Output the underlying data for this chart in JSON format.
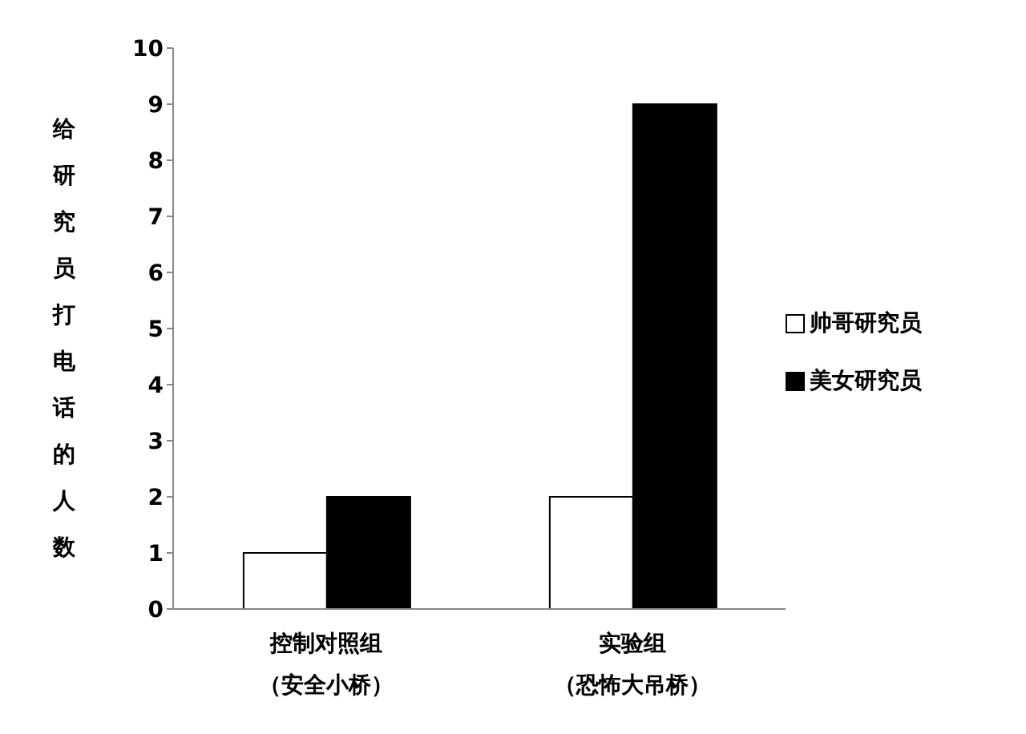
{
  "chart_data": {
    "type": "bar",
    "ylabel": "给研究员打电话的人数",
    "categories": [
      "控制对照组（安全小桥）",
      "实验组（恐怖大吊桥）"
    ],
    "series": [
      {
        "name": "帅哥研究员",
        "color": "#ffffff",
        "values": [
          1,
          2
        ]
      },
      {
        "name": "美女研究员",
        "color": "#000000",
        "values": [
          2,
          9
        ]
      }
    ],
    "ylim": [
      0,
      10
    ],
    "yticks": [
      0,
      1,
      2,
      3,
      4,
      5,
      6,
      7,
      8,
      9,
      10
    ],
    "grid": false,
    "legend": "right"
  }
}
